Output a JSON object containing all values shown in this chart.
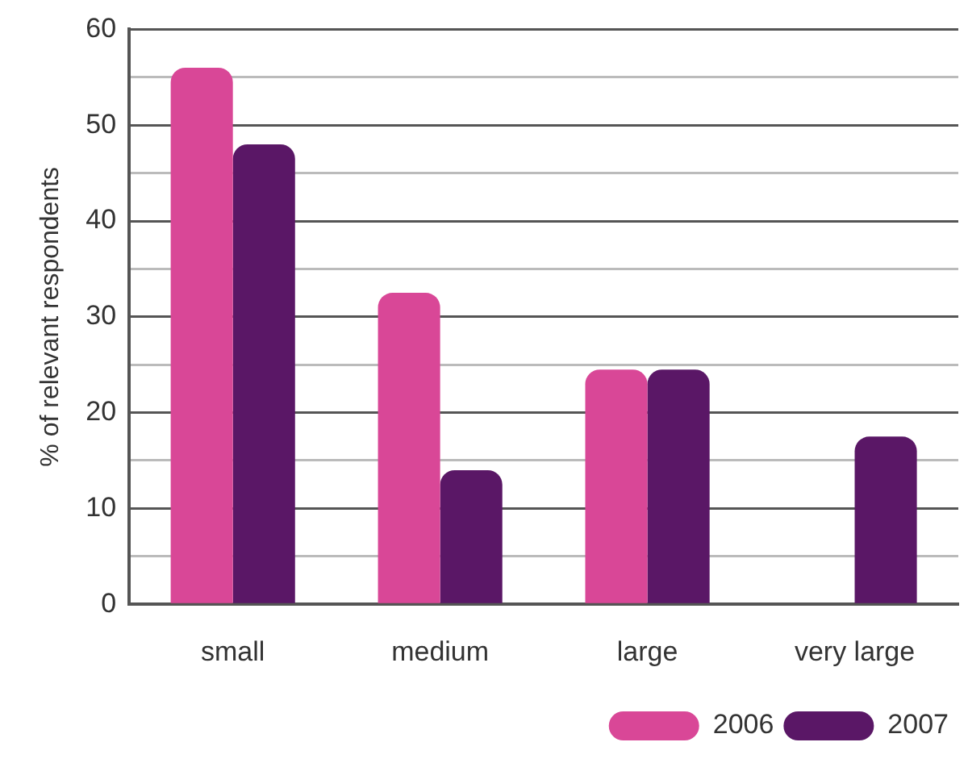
{
  "chart_data": {
    "type": "bar",
    "ylabel": "% of relevant respondents",
    "categories": [
      "small",
      "medium",
      "large",
      "very large"
    ],
    "series": [
      {
        "name": "2006",
        "color": "#d94797",
        "values": [
          56,
          32.5,
          24.5,
          null
        ]
      },
      {
        "name": "2007",
        "color": "#5a1766",
        "values": [
          48,
          14,
          24.5,
          17.5
        ]
      }
    ],
    "ylim": [
      0,
      60
    ],
    "yticks": [
      0,
      {
        "value": 5,
        "label": null
      },
      10,
      {
        "value": 15,
        "label": null
      },
      20,
      {
        "value": 25,
        "label": null
      },
      30,
      {
        "value": 35,
        "label": null
      },
      40,
      {
        "value": 45,
        "label": null
      },
      50,
      {
        "value": 55,
        "label": null
      },
      60
    ],
    "grid": "y",
    "legend": "bottom right"
  }
}
